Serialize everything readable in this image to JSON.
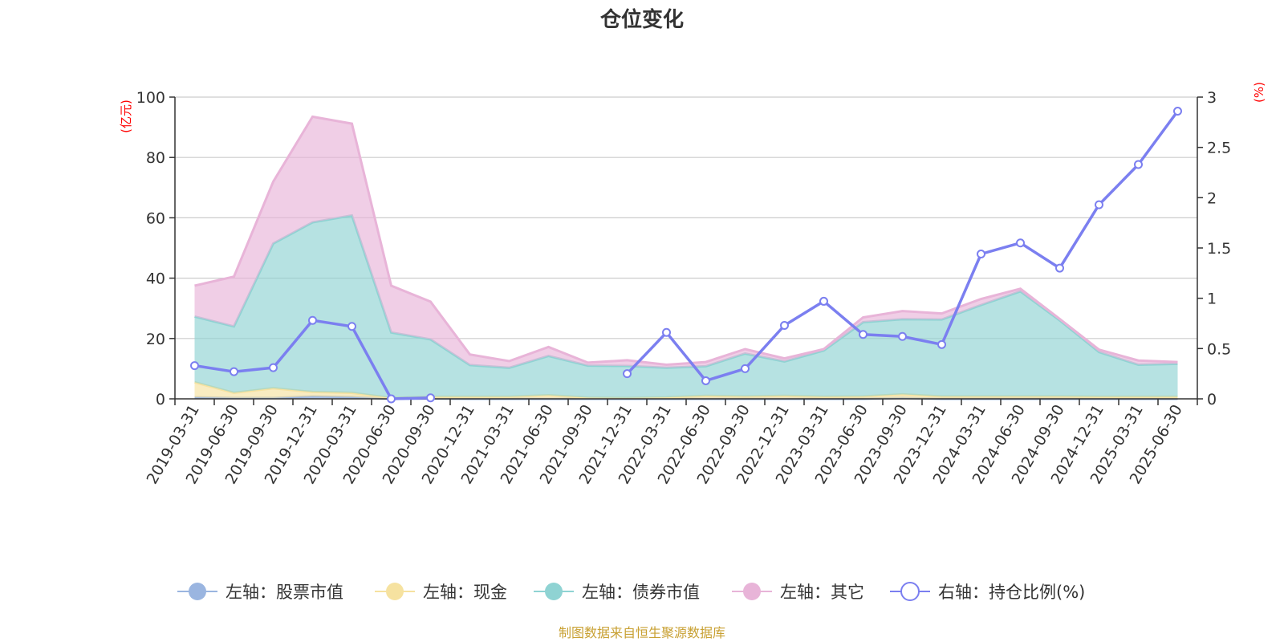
{
  "chart_data": {
    "type": "area",
    "title": "仓位变化",
    "source": "制图数据来自恒生聚源数据库",
    "left_axis": {
      "unit": "(亿元)",
      "ylim": [
        0,
        100
      ],
      "ticks": [
        "0",
        "20",
        "40",
        "60",
        "80",
        "100"
      ]
    },
    "right_axis": {
      "unit": "(%)",
      "ylim": [
        0,
        3
      ],
      "ticks": [
        "0",
        "0.5",
        "1",
        "1.5",
        "2",
        "2.5",
        "3"
      ]
    },
    "grid": true,
    "legend_position": "bottom",
    "categories": [
      "2019-03-31",
      "2019-06-30",
      "2019-09-30",
      "2019-12-31",
      "2020-03-31",
      "2020-06-30",
      "2020-09-30",
      "2020-12-31",
      "2021-03-31",
      "2021-06-30",
      "2021-09-30",
      "2021-12-31",
      "2022-03-31",
      "2022-06-30",
      "2022-09-30",
      "2022-12-31",
      "2023-03-31",
      "2023-06-30",
      "2023-09-30",
      "2023-12-31",
      "2024-03-31",
      "2024-06-30",
      "2024-09-30",
      "2024-12-31",
      "2025-03-31",
      "2025-06-30"
    ],
    "series": [
      {
        "name": "左轴：股票市值",
        "axis": "left",
        "stack": true,
        "color": "#9ab5e0",
        "values": [
          0.5,
          0.3,
          0.3,
          0.8,
          0.6,
          0,
          0.1,
          0,
          0,
          0,
          0,
          0,
          0,
          0,
          0,
          0,
          0,
          0,
          0.3,
          0,
          0,
          0,
          0,
          0,
          0,
          0
        ]
      },
      {
        "name": "左轴：现金",
        "axis": "left",
        "stack": true,
        "color": "#f6e2a0",
        "values": [
          5,
          1.7,
          3.2,
          1.5,
          1.4,
          0.3,
          0.6,
          0.7,
          0.7,
          1.2,
          0.4,
          0.3,
          0.5,
          1,
          0.8,
          1,
          0.7,
          0.8,
          1.2,
          0.8,
          0.8,
          0.8,
          0.8,
          0.7,
          0.7,
          0.7
        ]
      },
      {
        "name": "左轴：债券市值",
        "axis": "left",
        "stack": true,
        "color": "#8fd3d3",
        "values": [
          21.8,
          22,
          48,
          56.2,
          58.8,
          21.7,
          19,
          10.5,
          9.6,
          13,
          10.6,
          10.6,
          9.8,
          9.8,
          14.2,
          11.4,
          15.3,
          24.6,
          24.9,
          25.5,
          30.3,
          34.8,
          25.2,
          14.8,
          10.6,
          10.9
        ]
      },
      {
        "name": "左轴：其它",
        "axis": "left",
        "stack": true,
        "color": "#e8b4d8",
        "values": [
          10.2,
          16.5,
          20.5,
          35,
          30.4,
          15.5,
          12.5,
          3.5,
          2.2,
          3,
          1,
          1.9,
          1,
          1.4,
          1.5,
          1,
          0.5,
          1.6,
          2.7,
          2,
          2,
          0.9,
          0.5,
          0.8,
          1.4,
          0.6
        ]
      },
      {
        "name": "右轴：持仓比例(%)",
        "axis": "right",
        "stack": false,
        "color": "#7b7ff0",
        "values": [
          0.33,
          0.27,
          0.31,
          0.78,
          0.72,
          0,
          0.01,
          null,
          null,
          null,
          null,
          0.25,
          0.66,
          0.18,
          0.3,
          0.73,
          0.97,
          0.64,
          0.62,
          0.54,
          1.44,
          1.55,
          1.3,
          1.93,
          2.33,
          2.86
        ]
      }
    ]
  }
}
